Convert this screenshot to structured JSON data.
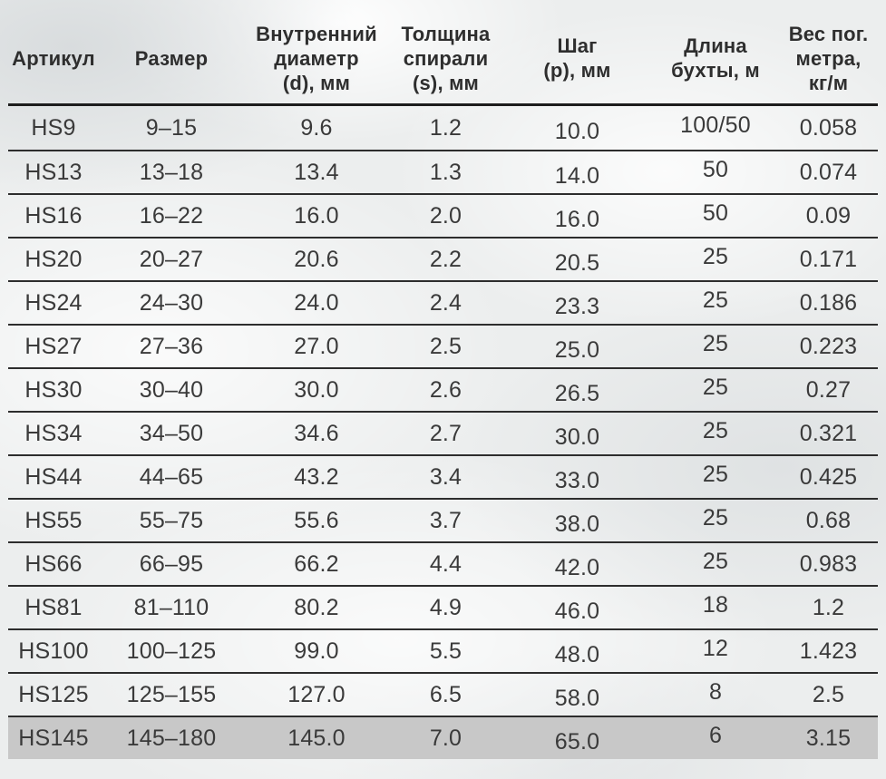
{
  "table": {
    "columns": [
      {
        "label": "Артикул"
      },
      {
        "label": "Размер"
      },
      {
        "label": "Внутренний\nдиаметр\n(d), мм"
      },
      {
        "label": "Толщина\nспирали\n(s), мм"
      },
      {
        "label": "Шаг\n(p), мм"
      },
      {
        "label": "Длина\nбухты, м"
      },
      {
        "label": "Вес пог.\nметра,\nкг/м"
      }
    ],
    "rows": [
      {
        "cells": [
          "HS9",
          "9–15",
          "9.6",
          "1.2",
          "10.0",
          "100/50",
          "0.058"
        ],
        "highlight": false
      },
      {
        "cells": [
          "HS13",
          "13–18",
          "13.4",
          "1.3",
          "14.0",
          "50",
          "0.074"
        ],
        "highlight": false
      },
      {
        "cells": [
          "HS16",
          "16–22",
          "16.0",
          "2.0",
          "16.0",
          "50",
          "0.09"
        ],
        "highlight": false
      },
      {
        "cells": [
          "HS20",
          "20–27",
          "20.6",
          "2.2",
          "20.5",
          "25",
          "0.171"
        ],
        "highlight": false
      },
      {
        "cells": [
          "HS24",
          "24–30",
          "24.0",
          "2.4",
          "23.3",
          "25",
          "0.186"
        ],
        "highlight": false
      },
      {
        "cells": [
          "HS27",
          "27–36",
          "27.0",
          "2.5",
          "25.0",
          "25",
          "0.223"
        ],
        "highlight": false
      },
      {
        "cells": [
          "HS30",
          "30–40",
          "30.0",
          "2.6",
          "26.5",
          "25",
          "0.27"
        ],
        "highlight": false
      },
      {
        "cells": [
          "HS34",
          "34–50",
          "34.6",
          "2.7",
          "30.0",
          "25",
          "0.321"
        ],
        "highlight": false
      },
      {
        "cells": [
          "HS44",
          "44–65",
          "43.2",
          "3.4",
          "33.0",
          "25",
          "0.425"
        ],
        "highlight": false
      },
      {
        "cells": [
          "HS55",
          "55–75",
          "55.6",
          "3.7",
          "38.0",
          "25",
          "0.68"
        ],
        "highlight": false
      },
      {
        "cells": [
          "HS66",
          "66–95",
          "66.2",
          "4.4",
          "42.0",
          "25",
          "0.983"
        ],
        "highlight": false
      },
      {
        "cells": [
          "HS81",
          "81–110",
          "80.2",
          "4.9",
          "46.0",
          "18",
          "1.2"
        ],
        "highlight": false
      },
      {
        "cells": [
          "HS100",
          "100–125",
          "99.0",
          "5.5",
          "48.0",
          "12",
          "1.423"
        ],
        "highlight": false
      },
      {
        "cells": [
          "HS125",
          "125–155",
          "127.0",
          "6.5",
          "58.0",
          "8",
          "2.5"
        ],
        "highlight": false
      },
      {
        "cells": [
          "HS145",
          "145–180",
          "145.0",
          "7.0",
          "65.0",
          "6",
          "3.15"
        ],
        "highlight": true
      }
    ]
  },
  "colors": {
    "background": "#eceeee",
    "highlight_row_background": "#c8c8c8",
    "rule_line": "#2d2d2d",
    "header_text": "#2e2e2e",
    "body_text": "#3a3a3a"
  }
}
